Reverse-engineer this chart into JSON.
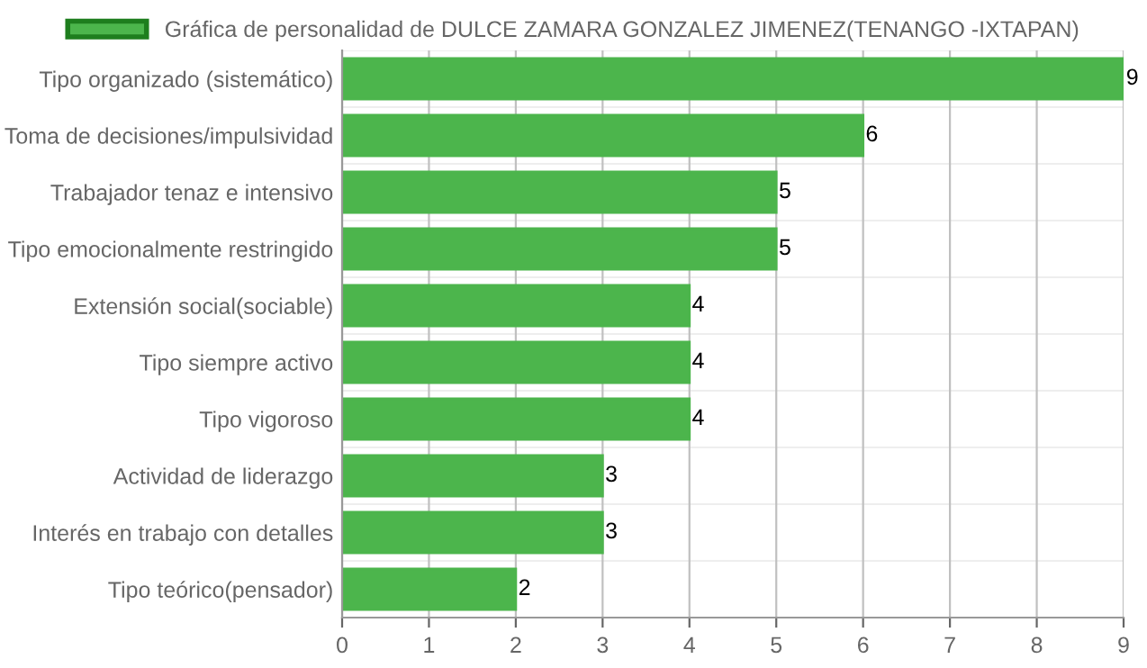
{
  "chart_data": {
    "type": "bar",
    "orientation": "horizontal",
    "categories": [
      "Tipo organizado (sistemático)",
      "Toma de decisiones/impulsividad",
      "Trabajador tenaz e intensivo",
      "Tipo emocionalmente restringido",
      "Extensión social(sociable)",
      "Tipo siempre activo",
      "Tipo vigoroso",
      "Actividad de liderazgo",
      "Interés en trabajo con detalles",
      "Tipo teórico(pensador)"
    ],
    "series": [
      {
        "name": "Gráfica de personalidad de DULCE ZAMARA GONZALEZ JIMENEZ(TENANGO -IXTAPAN)",
        "color": "#4cb54c",
        "values": [
          9,
          6,
          5,
          5,
          4,
          4,
          4,
          3,
          3,
          2
        ]
      }
    ],
    "xlim": [
      0,
      9
    ],
    "xticks": [
      0,
      1,
      2,
      3,
      4,
      5,
      6,
      7,
      8,
      9
    ],
    "grid": true,
    "legend": "top",
    "data_labels": true
  }
}
